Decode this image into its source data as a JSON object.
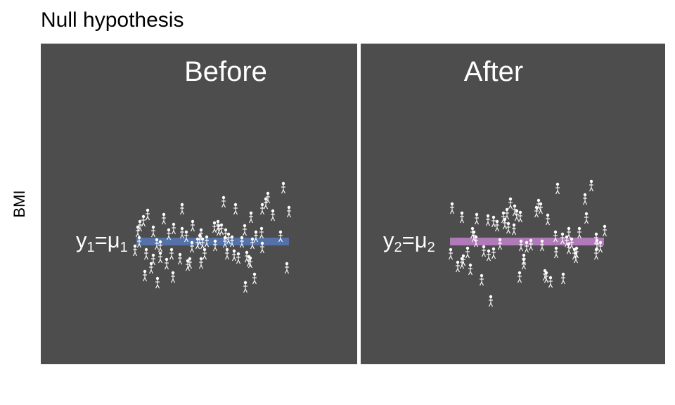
{
  "title": "Null hypothesis",
  "ylabel": "BMI",
  "colors": {
    "panel_bg": "#4d4d4d",
    "figure": "#ffffff",
    "before_mean": "#5472a8",
    "after_mean": "#b07ab8"
  },
  "panels": [
    {
      "label": "Before",
      "equation": {
        "y": "y",
        "y_sub": "1",
        "eq": "=",
        "mu": "μ",
        "mu_sub": "1"
      },
      "icon": "person-icon"
    },
    {
      "label": "After",
      "equation": {
        "y": "y",
        "y_sub": "2",
        "eq": "=",
        "mu": "μ",
        "mu_sub": "2"
      },
      "icon": "person-icon"
    }
  ]
}
